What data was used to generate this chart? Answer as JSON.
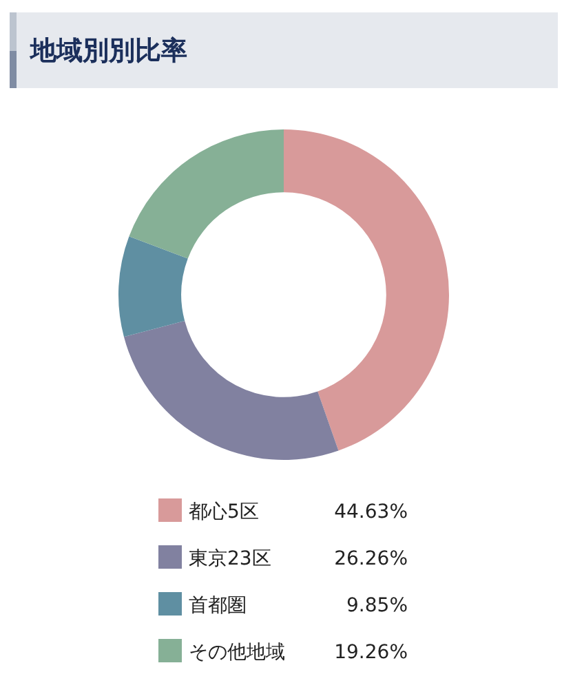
{
  "chart_data": {
    "type": "donut",
    "title": "地域別別比率",
    "categories": [
      "都心5区",
      "東京23区",
      "首都圏",
      "その他地域"
    ],
    "values": [
      44.63,
      26.26,
      9.85,
      19.26
    ],
    "value_labels": [
      "44.63%",
      "26.26%",
      "9.85%",
      "19.26%"
    ],
    "colors": [
      "#d89a9a",
      "#8181a0",
      "#5f8fa2",
      "#86b096"
    ],
    "legend": "bottom"
  }
}
